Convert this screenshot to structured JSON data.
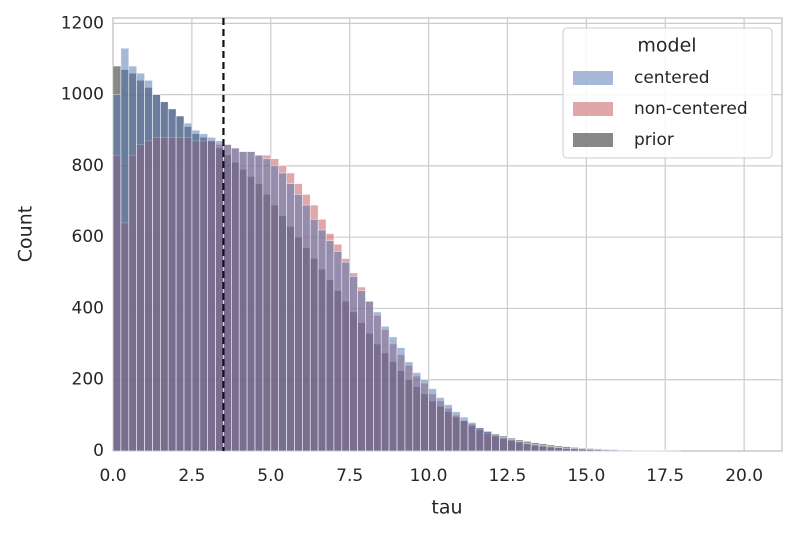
{
  "chart_data": {
    "type": "histogram",
    "x_label": "tau",
    "y_label": "Count",
    "legend_title": "model",
    "legend_position": "upper right",
    "grid": true,
    "xlim": [
      0,
      21.2
    ],
    "ylim": [
      0,
      1215
    ],
    "xticks": [
      {
        "value": 0,
        "label": "0.0"
      },
      2.5,
      {
        "value": 5,
        "label": "5.0"
      },
      7.5,
      {
        "value": 10,
        "label": "10.0"
      },
      12.5,
      {
        "value": 15,
        "label": "15.0"
      },
      17.5,
      {
        "value": 20,
        "label": "20.0"
      }
    ],
    "yticks": [
      0,
      200,
      400,
      600,
      800,
      1000,
      1200
    ],
    "vline": 3.5,
    "bins": [
      0,
      0.25,
      0.5,
      0.75,
      1,
      1.25,
      1.5,
      1.75,
      2,
      2.25,
      2.5,
      2.75,
      3,
      3.25,
      3.5,
      3.75,
      4,
      4.25,
      4.5,
      4.75,
      5,
      5.25,
      5.5,
      5.75,
      6,
      6.25,
      6.5,
      6.75,
      7,
      7.25,
      7.5,
      7.75,
      8,
      8.25,
      8.5,
      8.75,
      9,
      9.25,
      9.5,
      9.75,
      10,
      10.25,
      10.5,
      10.75,
      11,
      11.25,
      11.5,
      11.75,
      12,
      12.25,
      12.5,
      12.75,
      13,
      13.25,
      13.5,
      13.75,
      14,
      14.25,
      14.5,
      14.75,
      15,
      15.25,
      15.5,
      15.75,
      16,
      16.25,
      16.5,
      16.75,
      17,
      17.25,
      17.5,
      17.75,
      18
    ],
    "series": [
      {
        "name": "centered",
        "color": "#4c72b0",
        "values": [
          1000,
          1130,
          1080,
          1060,
          1040,
          1000,
          980,
          960,
          940,
          920,
          900,
          890,
          880,
          870,
          860,
          850,
          840,
          840,
          830,
          820,
          800,
          780,
          750,
          720,
          690,
          650,
          620,
          590,
          560,
          530,
          490,
          450,
          420,
          390,
          350,
          320,
          290,
          250,
          220,
          200,
          175,
          150,
          130,
          110,
          95,
          80,
          65,
          55,
          45,
          38,
          32,
          27,
          22,
          18,
          15,
          12,
          10,
          8,
          7,
          6,
          5,
          4,
          3,
          3,
          2,
          2,
          1,
          1,
          1,
          1,
          1,
          0
        ]
      },
      {
        "name": "non-centered",
        "color": "#c44e52",
        "values": [
          830,
          640,
          830,
          860,
          870,
          880,
          880,
          880,
          880,
          880,
          870,
          870,
          870,
          860,
          860,
          850,
          840,
          840,
          830,
          830,
          820,
          800,
          780,
          750,
          720,
          690,
          650,
          610,
          580,
          540,
          500,
          460,
          420,
          380,
          340,
          300,
          270,
          240,
          210,
          190,
          160,
          140,
          120,
          100,
          85,
          72,
          60,
          50,
          42,
          35,
          30,
          25,
          20,
          16,
          13,
          11,
          9,
          7,
          6,
          5,
          4,
          3,
          3,
          2,
          2,
          1,
          1,
          1,
          1,
          0,
          0,
          0
        ]
      },
      {
        "name": "prior",
        "color": "#555555",
        "values": [
          1080,
          1070,
          1060,
          1040,
          1020,
          1000,
          980,
          960,
          940,
          910,
          890,
          880,
          870,
          850,
          830,
          810,
          790,
          770,
          750,
          720,
          690,
          660,
          630,
          600,
          570,
          540,
          510,
          480,
          450,
          420,
          390,
          360,
          330,
          300,
          275,
          250,
          225,
          200,
          180,
          160,
          140,
          125,
          110,
          95,
          85,
          75,
          65,
          55,
          48,
          42,
          36,
          31,
          27,
          23,
          20,
          17,
          14,
          12,
          10,
          8,
          7,
          6,
          5,
          4,
          3,
          3,
          2,
          2,
          2,
          1,
          1,
          1
        ]
      }
    ]
  }
}
